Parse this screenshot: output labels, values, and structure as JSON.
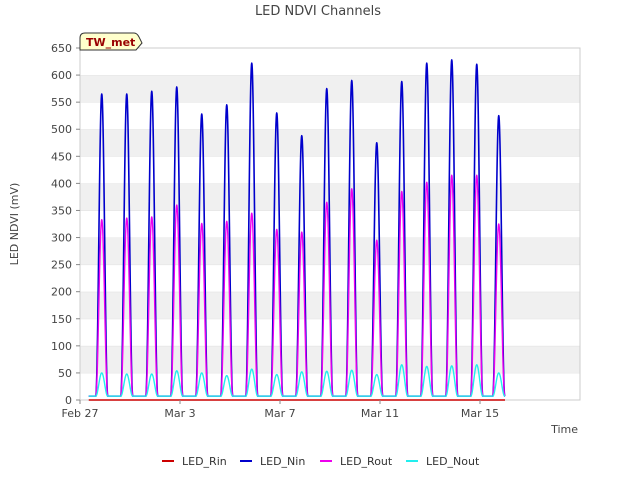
{
  "chart_data": {
    "type": "line",
    "title": "LED NDVI Channels",
    "xlabel": "Time",
    "ylabel": "LED NDVI (mV)",
    "ylim": [
      0,
      650
    ],
    "xlim": [
      0,
      20
    ],
    "y_ticks": [
      0,
      50,
      100,
      150,
      200,
      250,
      300,
      350,
      400,
      450,
      500,
      550,
      600,
      650
    ],
    "x_ticks": [
      {
        "value": 0,
        "label": "Feb 27"
      },
      {
        "value": 4,
        "label": "Mar 3"
      },
      {
        "value": 8,
        "label": "Mar 7"
      },
      {
        "value": 12,
        "label": "Mar 11"
      },
      {
        "value": 16,
        "label": "Mar 15"
      }
    ],
    "grid": "horizontal bands",
    "legend_position": "bottom",
    "site_label": "TW_met",
    "baseline": 7,
    "night_value": 7,
    "x_start": 0.35,
    "x_end": 17.0,
    "series": [
      {
        "name": "LED_Rin",
        "color": "#cc0000",
        "peaks": [
          {
            "day": 0.87,
            "value": 0
          },
          {
            "day": 1.87,
            "value": 0
          },
          {
            "day": 2.87,
            "value": 0
          },
          {
            "day": 3.87,
            "value": 0
          },
          {
            "day": 4.87,
            "value": 0
          },
          {
            "day": 5.87,
            "value": 0
          },
          {
            "day": 6.87,
            "value": 0
          },
          {
            "day": 7.87,
            "value": 0
          },
          {
            "day": 8.87,
            "value": 0
          },
          {
            "day": 9.87,
            "value": 0
          },
          {
            "day": 10.87,
            "value": 0
          },
          {
            "day": 11.87,
            "value": 0
          },
          {
            "day": 12.87,
            "value": 0
          },
          {
            "day": 13.87,
            "value": 0
          },
          {
            "day": 14.87,
            "value": 0
          },
          {
            "day": 15.87,
            "value": 0
          }
        ]
      },
      {
        "name": "LED_Nin",
        "color": "#0000cc",
        "peaks": [
          {
            "day": 0.87,
            "value": 565
          },
          {
            "day": 1.87,
            "value": 565
          },
          {
            "day": 2.87,
            "value": 570
          },
          {
            "day": 3.87,
            "value": 578
          },
          {
            "day": 4.87,
            "value": 528
          },
          {
            "day": 5.87,
            "value": 545
          },
          {
            "day": 6.87,
            "value": 622
          },
          {
            "day": 7.87,
            "value": 530
          },
          {
            "day": 8.87,
            "value": 488
          },
          {
            "day": 9.87,
            "value": 575
          },
          {
            "day": 10.87,
            "value": 590
          },
          {
            "day": 11.87,
            "value": 475
          },
          {
            "day": 12.87,
            "value": 588
          },
          {
            "day": 13.87,
            "value": 622
          },
          {
            "day": 14.87,
            "value": 628
          },
          {
            "day": 15.87,
            "value": 620
          },
          {
            "day": 16.75,
            "value": 525
          }
        ]
      },
      {
        "name": "LED_Rout",
        "color": "#ee00ee",
        "peaks": [
          {
            "day": 0.87,
            "value": 333
          },
          {
            "day": 1.87,
            "value": 336
          },
          {
            "day": 2.87,
            "value": 338
          },
          {
            "day": 3.87,
            "value": 360
          },
          {
            "day": 4.87,
            "value": 326
          },
          {
            "day": 5.87,
            "value": 330
          },
          {
            "day": 6.87,
            "value": 345
          },
          {
            "day": 7.87,
            "value": 315
          },
          {
            "day": 8.87,
            "value": 310
          },
          {
            "day": 9.87,
            "value": 365
          },
          {
            "day": 10.87,
            "value": 390
          },
          {
            "day": 11.87,
            "value": 295
          },
          {
            "day": 12.87,
            "value": 385
          },
          {
            "day": 13.87,
            "value": 402
          },
          {
            "day": 14.87,
            "value": 415
          },
          {
            "day": 15.87,
            "value": 415
          },
          {
            "day": 16.75,
            "value": 325
          }
        ]
      },
      {
        "name": "LED_Nout",
        "color": "#22eeee",
        "peaks": [
          {
            "day": 0.87,
            "value": 50
          },
          {
            "day": 1.87,
            "value": 48
          },
          {
            "day": 2.87,
            "value": 48
          },
          {
            "day": 3.87,
            "value": 54
          },
          {
            "day": 4.87,
            "value": 50
          },
          {
            "day": 5.87,
            "value": 45
          },
          {
            "day": 6.87,
            "value": 57
          },
          {
            "day": 7.87,
            "value": 47
          },
          {
            "day": 8.87,
            "value": 52
          },
          {
            "day": 9.87,
            "value": 53
          },
          {
            "day": 10.87,
            "value": 55
          },
          {
            "day": 11.87,
            "value": 47
          },
          {
            "day": 12.87,
            "value": 65
          },
          {
            "day": 13.87,
            "value": 62
          },
          {
            "day": 14.87,
            "value": 63
          },
          {
            "day": 15.87,
            "value": 65
          },
          {
            "day": 16.75,
            "value": 50
          }
        ]
      }
    ]
  }
}
